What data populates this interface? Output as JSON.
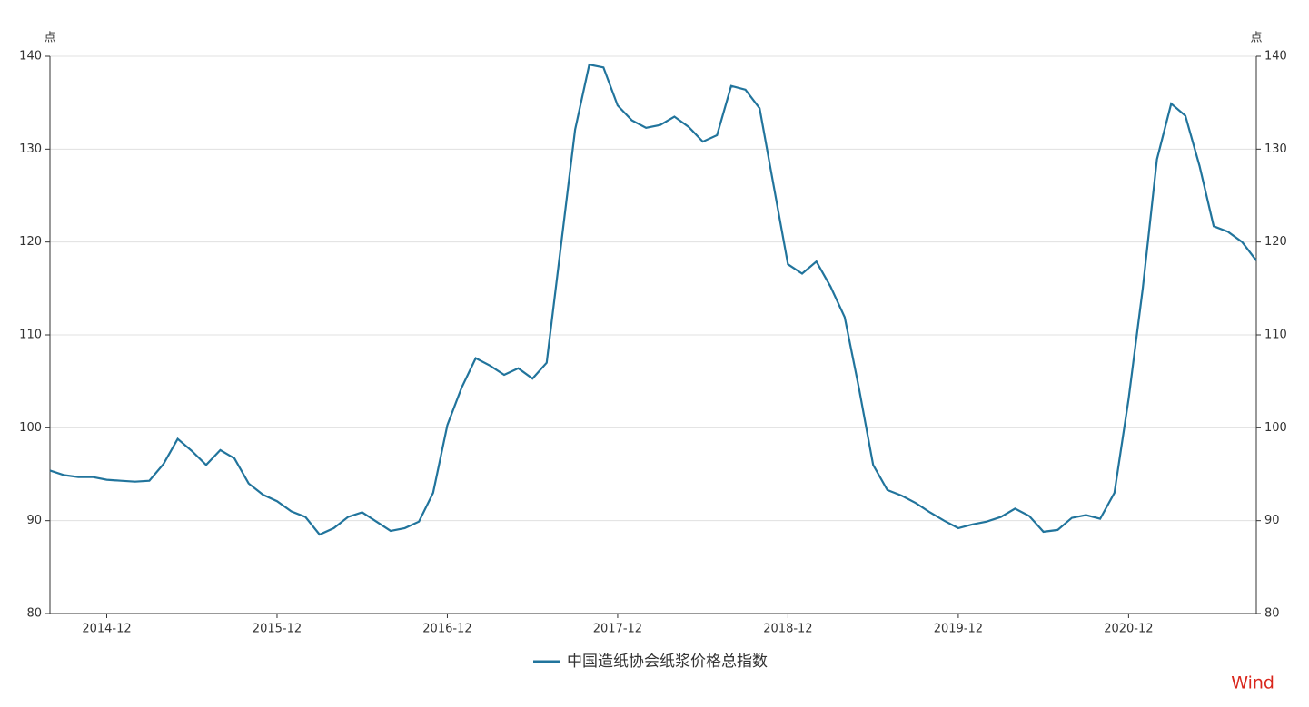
{
  "chart_data": {
    "type": "line",
    "y_label": "点",
    "y2_label": "点",
    "categories": [
      null,
      null,
      null,
      null,
      "2014-12",
      null,
      null,
      null,
      null,
      null,
      null,
      null,
      null,
      null,
      null,
      null,
      "2015-12",
      null,
      null,
      null,
      null,
      null,
      null,
      null,
      null,
      null,
      null,
      null,
      "2016-12",
      null,
      null,
      null,
      null,
      null,
      null,
      null,
      null,
      null,
      null,
      null,
      "2017-12",
      null,
      null,
      null,
      null,
      null,
      null,
      null,
      null,
      null,
      null,
      null,
      "2018-12",
      null,
      null,
      null,
      null,
      null,
      null,
      null,
      null,
      null,
      null,
      null,
      "2019-12",
      null,
      null,
      null,
      null,
      null,
      null,
      null,
      null,
      null,
      null,
      null,
      "2020-12",
      null,
      null,
      null,
      null,
      null,
      null,
      null,
      null,
      null
    ],
    "series": [
      {
        "name": "中国造纸协会纸浆价格总指数",
        "color": "#21749c",
        "values": [
          95.4,
          94.9,
          94.7,
          94.7,
          94.4,
          94.3,
          94.2,
          94.3,
          96.1,
          98.8,
          97.5,
          96.0,
          97.6,
          96.7,
          94.0,
          92.8,
          92.1,
          91.0,
          90.4,
          88.5,
          89.2,
          90.4,
          90.9,
          89.9,
          88.9,
          89.2,
          89.9,
          93.0,
          100.3,
          104.3,
          107.5,
          106.7,
          105.7,
          106.4,
          105.3,
          107.0,
          119.5,
          132.1,
          139.1,
          138.8,
          134.7,
          133.1,
          132.3,
          132.6,
          133.5,
          132.4,
          130.8,
          131.5,
          136.8,
          136.4,
          134.4,
          126.0,
          117.6,
          116.6,
          117.9,
          115.2,
          111.9,
          104.3,
          96.0,
          93.3,
          92.7,
          91.9,
          90.9,
          90.0,
          89.2,
          89.6,
          89.9,
          90.4,
          91.3,
          90.5,
          88.8,
          89.0,
          90.3,
          90.6,
          90.2,
          93.0,
          103.1,
          115.0,
          128.9,
          134.9,
          133.6,
          128.2,
          121.7,
          121.1,
          120.0,
          118.0
        ]
      }
    ],
    "ylim": [
      80,
      140
    ],
    "yticks": [
      80,
      90,
      100,
      110,
      120,
      130,
      140
    ],
    "y2lim": [
      80,
      140
    ],
    "y2ticks": [
      80,
      90,
      100,
      110,
      120,
      130,
      140
    ],
    "grid": true,
    "legend": "bottom",
    "source": "Wind",
    "source_color": "#d9261c"
  }
}
